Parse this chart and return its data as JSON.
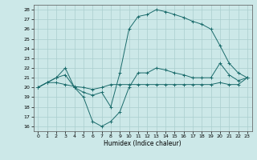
{
  "xlabel": "Humidex (Indice chaleur)",
  "bg_color": "#cce8e8",
  "line_color": "#1a6b6b",
  "grid_color": "#aacece",
  "xlim": [
    -0.5,
    23.5
  ],
  "ylim": [
    15.5,
    28.5
  ],
  "xticks": [
    0,
    1,
    2,
    3,
    4,
    5,
    6,
    7,
    8,
    9,
    10,
    11,
    12,
    13,
    14,
    15,
    16,
    17,
    18,
    19,
    20,
    21,
    22,
    23
  ],
  "yticks": [
    16,
    17,
    18,
    19,
    20,
    21,
    22,
    23,
    24,
    25,
    26,
    27,
    28
  ],
  "line1_x": [
    0,
    1,
    2,
    3,
    4,
    5,
    6,
    7,
    8,
    9,
    10,
    11,
    12,
    13,
    14,
    15,
    16,
    17,
    18,
    19,
    20,
    21,
    22,
    23
  ],
  "line1_y": [
    20.0,
    20.5,
    20.5,
    20.3,
    20.1,
    20.0,
    19.8,
    20.0,
    20.3,
    20.3,
    20.3,
    20.3,
    20.3,
    20.3,
    20.3,
    20.3,
    20.3,
    20.3,
    20.3,
    20.3,
    20.5,
    20.3,
    20.3,
    21.0
  ],
  "line2_x": [
    0,
    1,
    2,
    3,
    4,
    5,
    6,
    7,
    8,
    9,
    10,
    11,
    12,
    13,
    14,
    15,
    16,
    17,
    18,
    19,
    20,
    21,
    22,
    23
  ],
  "line2_y": [
    20.0,
    20.5,
    21.0,
    21.3,
    20.0,
    19.0,
    16.5,
    16.0,
    16.5,
    17.5,
    20.0,
    21.5,
    21.5,
    22.0,
    21.8,
    21.5,
    21.3,
    21.0,
    21.0,
    21.0,
    22.5,
    21.3,
    20.7,
    21.0
  ],
  "line3_x": [
    0,
    1,
    2,
    3,
    4,
    5,
    6,
    7,
    8,
    9,
    10,
    11,
    12,
    13,
    14,
    15,
    16,
    17,
    18,
    19,
    20,
    21,
    22,
    23
  ],
  "line3_y": [
    20.0,
    20.5,
    21.0,
    22.0,
    20.0,
    19.5,
    19.2,
    19.5,
    18.0,
    21.5,
    26.0,
    27.3,
    27.5,
    28.0,
    27.8,
    27.5,
    27.2,
    26.8,
    26.5,
    26.0,
    24.3,
    22.5,
    21.5,
    21.0
  ]
}
